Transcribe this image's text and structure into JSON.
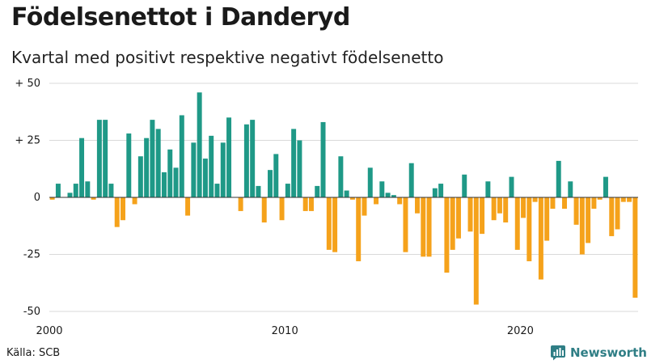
{
  "header": {
    "title": "Födelsenettot i Danderyd",
    "subtitle": "Kvartal med positivt respektive negativt födelsenetto"
  },
  "footer": {
    "source": "Källa: SCB",
    "brand": "Newsworthy"
  },
  "colors": {
    "positive": "#1f9987",
    "negative": "#f5a21b",
    "grid": "#d9d9d9",
    "brand": "#2f7e85"
  },
  "chart_data": {
    "type": "bar",
    "title": "Födelsenettot i Danderyd",
    "subtitle": "Kvartal med positivt respektive negativt födelsenetto",
    "xlabel": "",
    "ylabel": "",
    "ylim": [
      -50,
      50
    ],
    "y_ticks": [
      50,
      25,
      0,
      -25,
      -50
    ],
    "y_tick_labels": [
      "+ 50",
      "+ 25",
      "0",
      "-25",
      "-50"
    ],
    "x_ticks": [
      2000,
      2010,
      2020
    ],
    "x_tick_labels": [
      "2000",
      "2010",
      "2020"
    ],
    "start_year": 2000,
    "periods_per_year": 4,
    "categories": [
      "2000Q1",
      "2000Q2",
      "2000Q3",
      "2000Q4",
      "2001Q1",
      "2001Q2",
      "2001Q3",
      "2001Q4",
      "2002Q1",
      "2002Q2",
      "2002Q3",
      "2002Q4",
      "2003Q1",
      "2003Q2",
      "2003Q3",
      "2003Q4",
      "2004Q1",
      "2004Q2",
      "2004Q3",
      "2004Q4",
      "2005Q1",
      "2005Q2",
      "2005Q3",
      "2005Q4",
      "2006Q1",
      "2006Q2",
      "2006Q3",
      "2006Q4",
      "2007Q1",
      "2007Q2",
      "2007Q3",
      "2007Q4",
      "2008Q1",
      "2008Q2",
      "2008Q3",
      "2008Q4",
      "2009Q1",
      "2009Q2",
      "2009Q3",
      "2009Q4",
      "2010Q1",
      "2010Q2",
      "2010Q3",
      "2010Q4",
      "2011Q1",
      "2011Q2",
      "2011Q3",
      "2011Q4",
      "2012Q1",
      "2012Q2",
      "2012Q3",
      "2012Q4",
      "2013Q1",
      "2013Q2",
      "2013Q3",
      "2013Q4",
      "2014Q1",
      "2014Q2",
      "2014Q3",
      "2014Q4",
      "2015Q1",
      "2015Q2",
      "2015Q3",
      "2015Q4",
      "2016Q1",
      "2016Q2",
      "2016Q3",
      "2016Q4",
      "2017Q1",
      "2017Q2",
      "2017Q3",
      "2017Q4",
      "2018Q1",
      "2018Q2",
      "2018Q3",
      "2018Q4",
      "2019Q1",
      "2019Q2",
      "2019Q3",
      "2019Q4",
      "2020Q1",
      "2020Q2",
      "2020Q3",
      "2020Q4",
      "2021Q1",
      "2021Q2",
      "2021Q3",
      "2021Q4",
      "2022Q1",
      "2022Q2",
      "2022Q3",
      "2022Q4",
      "2023Q1",
      "2023Q2",
      "2023Q3",
      "2023Q4",
      "2024Q1",
      "2024Q2",
      "2024Q3",
      "2024Q4"
    ],
    "values": [
      -1,
      6,
      0,
      2,
      6,
      26,
      7,
      -1,
      34,
      34,
      6,
      -13,
      -10,
      28,
      -3,
      18,
      26,
      34,
      30,
      11,
      21,
      13,
      36,
      -8,
      24,
      46,
      17,
      27,
      6,
      24,
      35,
      0,
      -6,
      32,
      34,
      5,
      -11,
      12,
      19,
      -10,
      6,
      30,
      25,
      -6,
      -6,
      5,
      33,
      -23,
      -24,
      18,
      3,
      -1,
      -28,
      -8,
      13,
      -3,
      7,
      2,
      1,
      -3,
      -24,
      15,
      -7,
      -26,
      -26,
      4,
      6,
      -33,
      -23,
      -18,
      10,
      -15,
      -47,
      -16,
      7,
      -10,
      -7,
      -11,
      9,
      -23,
      -9,
      -28,
      -2,
      -36,
      -19,
      -5,
      16,
      -5,
      7,
      -12,
      -25,
      -20,
      -5,
      -1,
      9,
      -17,
      -14,
      -2,
      -2,
      -44
    ]
  }
}
